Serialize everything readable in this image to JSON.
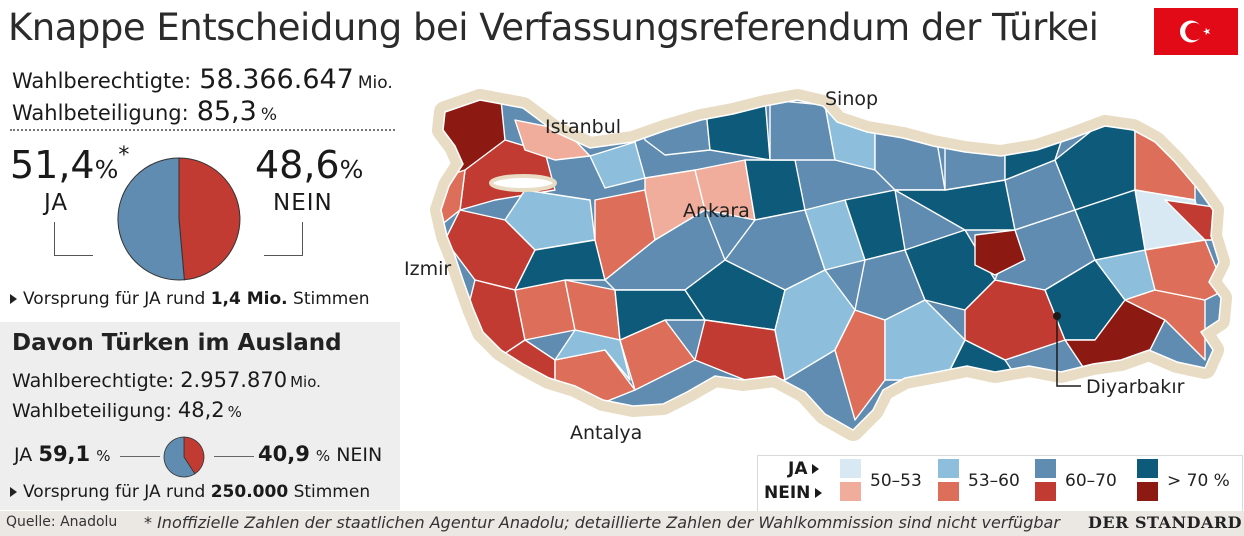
{
  "title": "Knappe Entscheidung bei Verfassungsreferendum der Türkei",
  "flag": {
    "name": "turkey-flag",
    "color": "#e30a17"
  },
  "total": {
    "eligible_label": "Wahlberechtigte:",
    "eligible_value": "58.366.647",
    "eligible_unit": "Mio.",
    "turnout_label": "Wahlbeteiligung:",
    "turnout_value": "85,3",
    "turnout_unit": "%",
    "yes_pct": "51,4",
    "yes_unit": "%",
    "asterisk": "*",
    "yes_label": "JA",
    "no_pct": "48,6",
    "no_unit": "%",
    "no_label": "NEIN",
    "yes_share": 51.4,
    "no_share": 48.6,
    "lead_prefix": "Vorsprung für JA rund",
    "lead_value": "1,4 Mio.",
    "lead_suffix": "Stimmen"
  },
  "abroad": {
    "title": "Davon Türken im Ausland",
    "eligible_label": "Wahlberechtigte:",
    "eligible_value": "2.957.870",
    "eligible_unit": "Mio.",
    "turnout_label": "Wahlbeteiligung:",
    "turnout_value": "48,2",
    "turnout_unit": "%",
    "yes_label": "JA",
    "yes_pct": "59,1",
    "yes_unit": "%",
    "no_pct": "40,9",
    "no_unit": "%",
    "no_label": "NEIN",
    "yes_share": 59.1,
    "no_share": 40.9,
    "lead_prefix": "Vorsprung für JA rund",
    "lead_value": "250.000",
    "lead_suffix": "Stimmen"
  },
  "cities": {
    "istanbul": "Istanbul",
    "sinop": "Sinop",
    "ankara": "Ankara",
    "izmir": "Izmir",
    "antalya": "Antalya",
    "diyarbakir": "Diyarbakır"
  },
  "legend": {
    "ja_label": "JA",
    "nein_label": "NEIN",
    "ranges": [
      "50–53",
      "53–60",
      "60–70",
      "> 70 %"
    ],
    "ja_colors": [
      "#d9e9f3",
      "#8dbfdc",
      "#5f8cb0",
      "#0d5a7a"
    ],
    "nein_colors": [
      "#f0ad9c",
      "#dd6e5a",
      "#c23b32",
      "#8c1a12"
    ]
  },
  "footer": {
    "source": "Quelle: Anadolu",
    "note": "* Inoffizielle Zahlen der staatlichen Agentur Anadolu; detaillierte Zahlen der Wahlkommission sind nicht verfügbar",
    "brand": "DER STANDARD"
  }
}
